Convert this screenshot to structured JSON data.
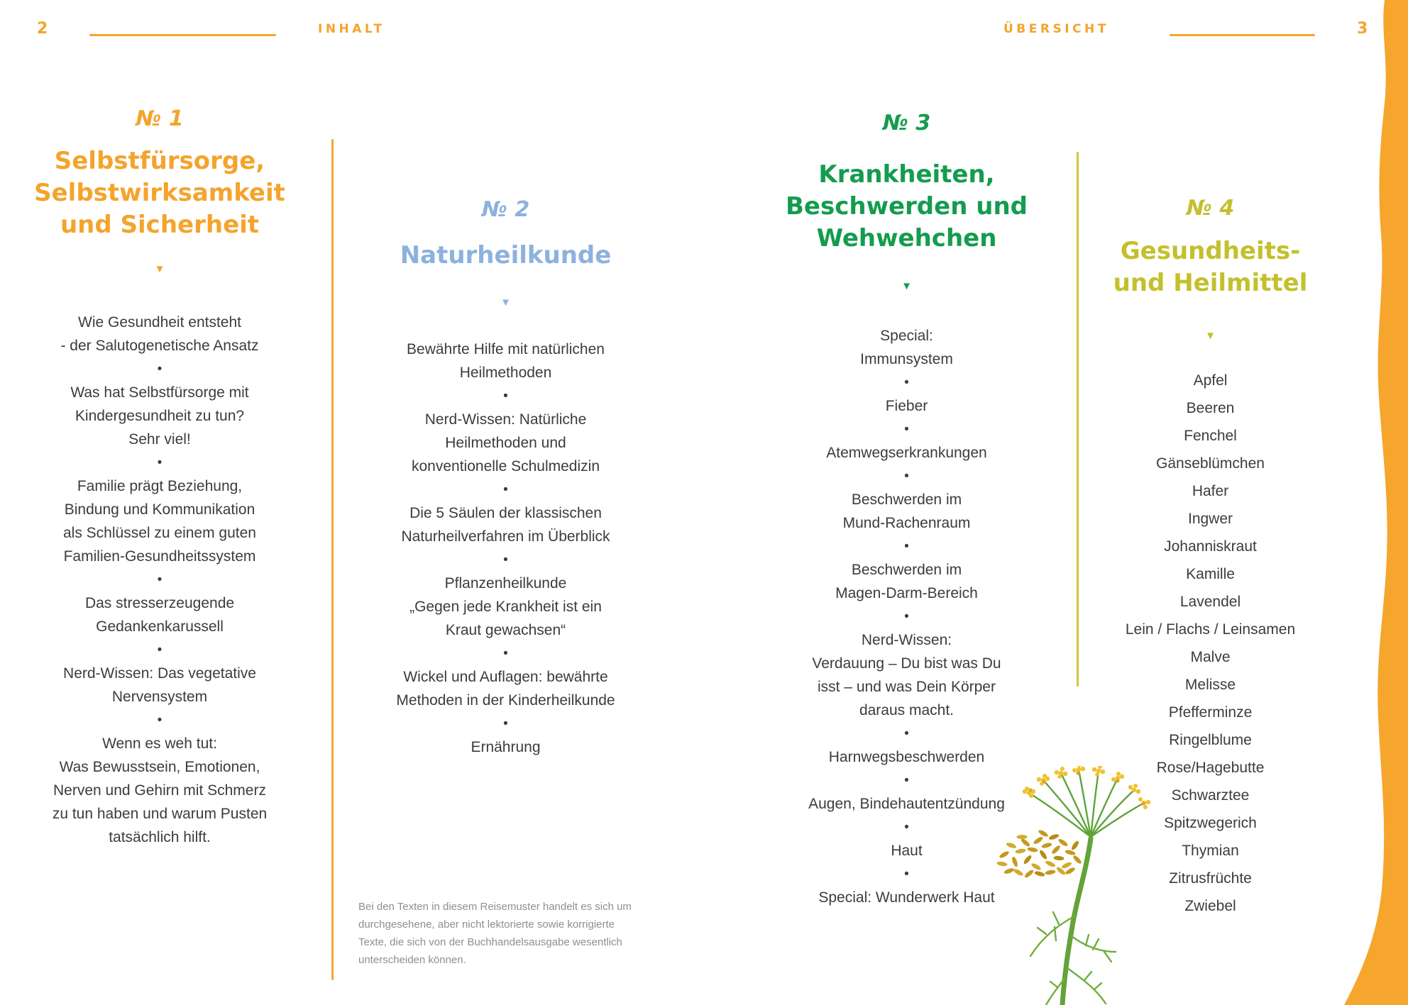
{
  "header": {
    "left_page_number": "2",
    "left_label": "INHALT",
    "right_label": "ÜBERSICHT",
    "right_page_number": "3"
  },
  "columns": [
    {
      "number_label": "№ 1",
      "title_lines": [
        "Selbstfürsorge,",
        "Selbstwirksamkeit",
        "und Sicherheit"
      ],
      "accent_color": "#F4A42C",
      "separator": "dot",
      "items": [
        [
          "Wie Gesundheit entsteht",
          "- der Salutogenetische Ansatz"
        ],
        [
          "Was hat Selbstfürsorge mit",
          "Kindergesundheit zu tun?",
          "Sehr viel!"
        ],
        [
          "Familie prägt Beziehung,",
          "Bindung und Kommunikation",
          "als Schlüssel zu einem guten",
          "Familien-Gesundheitssystem"
        ],
        [
          "Das stresserzeugende",
          "Gedankenkarussell"
        ],
        [
          "Nerd-Wissen: Das vegetative",
          "Nervensystem"
        ],
        [
          "Wenn es weh tut:",
          "Was Bewusstsein, Emotionen,",
          "Nerven und Gehirn mit Schmerz",
          "zu tun haben und warum Pusten",
          "tatsächlich hilft."
        ]
      ]
    },
    {
      "number_label": "№ 2",
      "title_lines": [
        "Naturheilkunde"
      ],
      "accent_color": "#8CB2DD",
      "separator": "dot",
      "items": [
        [
          "Bewährte Hilfe mit natürlichen",
          "Heilmethoden"
        ],
        [
          "Nerd-Wissen: Natürliche",
          "Heilmethoden und",
          "konventionelle Schulmedizin"
        ],
        [
          "Die 5 Säulen der klassischen",
          "Naturheilverfahren im Überblick"
        ],
        [
          "Pflanzenheilkunde",
          "„Gegen jede Krankheit ist ein",
          "Kraut gewachsen“"
        ],
        [
          "Wickel und Auflagen: bewährte",
          "Methoden in der Kinderheilkunde"
        ],
        [
          "Ernährung"
        ]
      ]
    },
    {
      "number_label": "№ 3",
      "title_lines": [
        "Krankheiten,",
        "Beschwerden und",
        "Wehwehchen"
      ],
      "accent_color": "#149C4E",
      "separator": "dot",
      "items": [
        [
          "Special:",
          "Immunsystem"
        ],
        [
          "Fieber"
        ],
        [
          "Atemwegserkrankungen"
        ],
        [
          "Beschwerden im",
          "Mund-Rachenraum"
        ],
        [
          "Beschwerden im",
          "Magen-Darm-Bereich"
        ],
        [
          "Nerd-Wissen:",
          "Verdauung – Du bist was Du",
          "isst – und was Dein Körper",
          "daraus macht."
        ],
        [
          "Harnwegsbeschwerden"
        ],
        [
          "Augen, Bindehautentzündung"
        ],
        [
          "Haut"
        ],
        [
          "Special: Wunderwerk Haut"
        ]
      ]
    },
    {
      "number_label": "№ 4",
      "title_lines": [
        "Gesundheits-",
        "und Heilmittel"
      ],
      "accent_color": "#C3C02C",
      "separator": "none",
      "items": [
        [
          "Apfel"
        ],
        [
          "Beeren"
        ],
        [
          "Fenchel"
        ],
        [
          "Gänseblümchen"
        ],
        [
          "Hafer"
        ],
        [
          "Ingwer"
        ],
        [
          "Johanniskraut"
        ],
        [
          "Kamille"
        ],
        [
          "Lavendel"
        ],
        [
          "Lein / Flachs / Leinsamen"
        ],
        [
          "Malve"
        ],
        [
          "Melisse"
        ],
        [
          "Pfefferminze"
        ],
        [
          "Ringelblume"
        ],
        [
          "Rose/Hagebutte"
        ],
        [
          "Schwarztee"
        ],
        [
          "Spitzwegerich"
        ],
        [
          "Thymian"
        ],
        [
          "Zitrusfrüchte"
        ],
        [
          "Zwiebel"
        ]
      ]
    }
  ],
  "disclaimer": {
    "lines": [
      "Bei den Texten in diesem Reisemuster handelt es sich um",
      "durchgesehene, aber nicht lektorierte sowie korrigierte",
      "Texte, die sich von der Buchhandelsausgabe wesentlich",
      "unterscheiden können."
    ]
  },
  "decorations": {
    "arrow_icon": "▼",
    "bullet_icon": "•",
    "plant_illustration": "fennel-plant",
    "edge_band": "orange-wave-band"
  },
  "colors": {
    "orange": "#F4A42C",
    "blue": "#8CB2DD",
    "green": "#149C4E",
    "olive": "#C3C02C",
    "divider_orange": "#F2A735",
    "divider_olive": "#CFC93E",
    "body_text": "#3C3C3C",
    "muted_text": "#8F8F8F"
  }
}
